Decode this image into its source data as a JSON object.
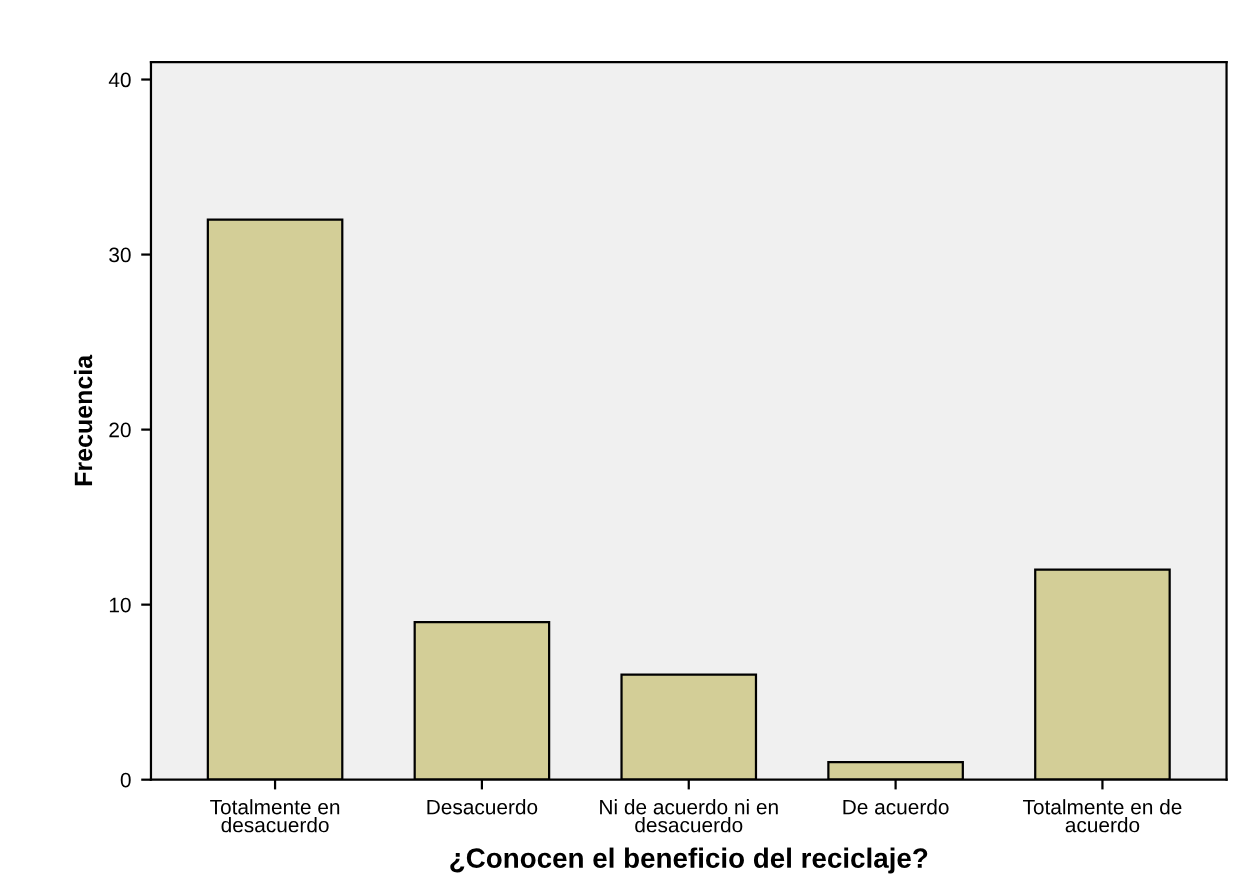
{
  "chart_data": {
    "type": "bar",
    "xlabel": "¿Conocen el beneficio del reciclaje?",
    "ylabel": "Frecuencia",
    "categories": [
      "Totalmente en\ndesacuerdo",
      "Desacuerdo",
      "Ni de acuerdo ni en\ndesacuerdo",
      "De acuerdo",
      "Totalmente en de\nacuerdo"
    ],
    "values": [
      32,
      9,
      6,
      1,
      12
    ],
    "color": "#d3ce97",
    "ylim": [
      0,
      41
    ],
    "yticks": [
      0,
      10,
      20,
      30,
      40
    ],
    "grid": false,
    "legend": false
  }
}
